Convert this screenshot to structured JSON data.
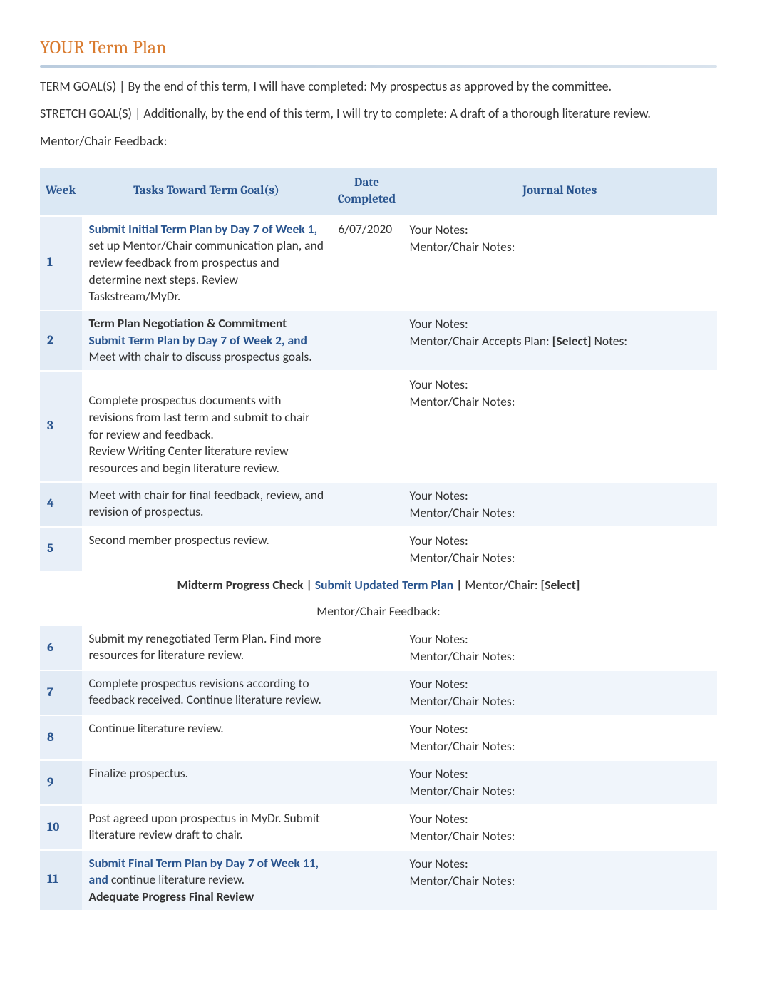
{
  "title": "YOUR Term Plan",
  "term_goal_label": "TERM GOAL(S) | By the end of this term, I will have completed:  ",
  "term_goal_value": "My prospectus as approved by the committee.",
  "stretch_goal_label": "STRETCH GOAL(S) | Additionally, by the end of this term, I will try to complete:  ",
  "stretch_goal_value": "A draft of a thorough literature review.",
  "mentor_feedback_label": "Mentor/Chair Feedback:",
  "headers": {
    "week": "Week",
    "tasks": "Tasks Toward Term Goal(s)",
    "date": "Date Completed",
    "notes": "Journal Notes"
  },
  "rows": [
    {
      "week": "1",
      "task_bold_blue": "Submit Initial Term Plan by Day 7 of Week 1,",
      "task_rest": " set up Mentor/Chair communication plan, and review feedback from prospectus and determine next steps. Review Taskstream/MyDr.",
      "date": "6/07/2020",
      "your_notes": "Your Notes:",
      "mentor_notes": "Mentor/Chair Notes:"
    },
    {
      "week": "2",
      "task_bold_black": "Term Plan Negotiation & Commitment",
      "task_bold_blue": "Submit Term Plan by Day 7 of Week 2, and",
      "task_rest": " Meet with chair to discuss prospectus goals.",
      "date": "",
      "your_notes": "Your Notes:",
      "mentor_line_prefix": "Mentor/Chair Accepts Plan: ",
      "mentor_line_select": "[Select]",
      "mentor_line_suffix": "  Notes:"
    },
    {
      "week": "3",
      "task_rest": "Complete prospectus documents with revisions from last term and submit to chair for review and feedback.\nReview Writing Center literature review resources and begin literature review.",
      "date": "",
      "your_notes": "Your Notes:",
      "mentor_notes": "Mentor/Chair Notes:"
    },
    {
      "week": "4",
      "task_rest": "Meet with chair for final feedback, review, and revision of prospectus.",
      "date": "",
      "your_notes": "Your Notes:",
      "mentor_notes": "Mentor/Chair Notes:"
    },
    {
      "week": "5",
      "task_rest": "Second member prospectus review.",
      "date": "",
      "your_notes": "Your Notes:",
      "mentor_notes": "Mentor/Chair Notes:"
    }
  ],
  "midterm": {
    "progress_label": "Midterm Progress Check",
    "pipe1": " | ",
    "submit_label": "Submit Updated Term Plan",
    "pipe2": " | ",
    "mentor_prefix": "Mentor/Chair: ",
    "select": "[Select]",
    "feedback": "Mentor/Chair Feedback:"
  },
  "rows2": [
    {
      "week": "6",
      "task_rest": "Submit my renegotiated Term Plan. Find more resources for literature review.",
      "your_notes": "Your Notes:",
      "mentor_notes": "Mentor/Chair Notes:"
    },
    {
      "week": "7",
      "task_rest": "Complete prospectus revisions according to feedback received. Continue literature review.",
      "your_notes": "Your Notes:",
      "mentor_notes": "Mentor/Chair Notes:"
    },
    {
      "week": "8",
      "task_rest": "Continue literature review.",
      "your_notes": "Your Notes:",
      "mentor_notes": "Mentor/Chair Notes:"
    },
    {
      "week": "9",
      "task_rest": "Finalize prospectus.",
      "your_notes": "Your Notes:",
      "mentor_notes": "Mentor/Chair Notes:"
    },
    {
      "week": "10",
      "task_rest": "Post agreed upon prospectus in MyDr. Submit literature review draft to chair.",
      "your_notes": "Your Notes:",
      "mentor_notes": "Mentor/Chair Notes:"
    },
    {
      "week": "11",
      "task_bold_blue": "Submit Final Term Plan by Day 7 of Week 11, and",
      "task_rest_inline": " continue literature review.",
      "task_bold_black2": "Adequate Progress Final Review",
      "your_notes": "Your Notes:",
      "mentor_notes": "Mentor/Chair Notes:"
    }
  ]
}
